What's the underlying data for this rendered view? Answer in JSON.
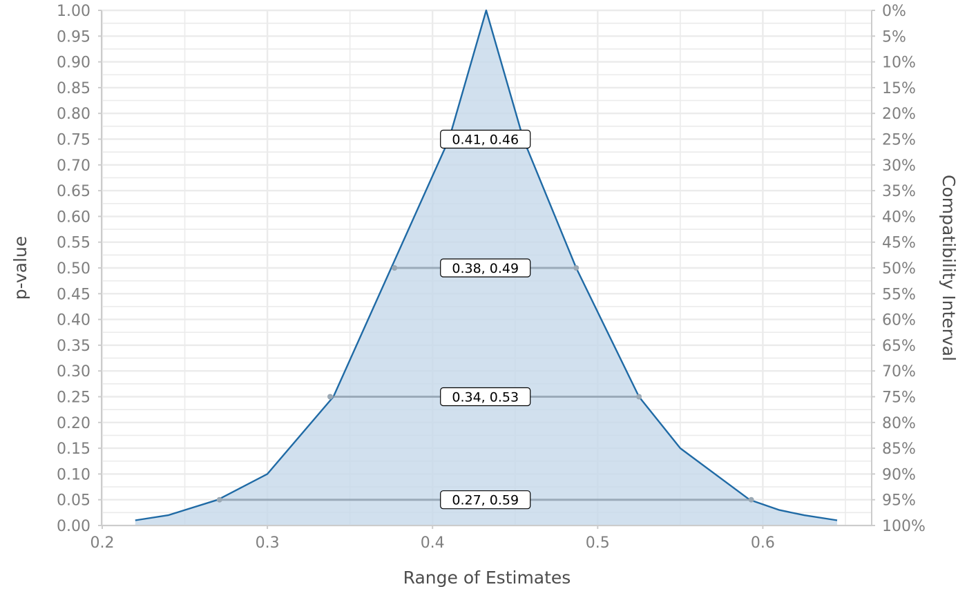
{
  "chart_data": {
    "type": "area",
    "title": "",
    "xlabel": "Range of Estimates",
    "ylabel": "p-value",
    "y2label": "Compatibility Interval",
    "xlim": [
      0.2,
      0.66
    ],
    "ylim": [
      0,
      1
    ],
    "x_ticks": [
      "0.2",
      "0.3",
      "0.4",
      "0.5",
      "0.6"
    ],
    "y_ticks": [
      "0.00",
      "0.05",
      "0.10",
      "0.15",
      "0.20",
      "0.25",
      "0.30",
      "0.35",
      "0.40",
      "0.45",
      "0.50",
      "0.55",
      "0.60",
      "0.65",
      "0.70",
      "0.75",
      "0.80",
      "0.85",
      "0.90",
      "0.95",
      "1.00"
    ],
    "y2_ticks": [
      "100%",
      "95%",
      "90%",
      "85%",
      "80%",
      "75%",
      "70%",
      "65%",
      "60%",
      "55%",
      "50%",
      "45%",
      "40%",
      "35%",
      "30%",
      "25%",
      "20%",
      "15%",
      "10%",
      "5%",
      "0%"
    ],
    "grid": true,
    "series": [
      {
        "color": "#1f6aa5",
        "fill": "#c5d8ea",
        "x": [
          0.22,
          0.24,
          0.25,
          0.27,
          0.3,
          0.34,
          0.375,
          0.41,
          0.4325,
          0.455,
          0.487,
          0.525,
          0.55,
          0.592,
          0.61,
          0.625,
          0.645
        ],
        "y": [
          0.01,
          0.02,
          0.03,
          0.05,
          0.1,
          0.25,
          0.5,
          0.75,
          1.0,
          0.75,
          0.5,
          0.25,
          0.15,
          0.05,
          0.03,
          0.02,
          0.01
        ]
      }
    ],
    "intervals": [
      {
        "p": 0.75,
        "lower": 0.41,
        "upper": 0.46,
        "label": "0.41, 0.46",
        "show_line": false
      },
      {
        "p": 0.5,
        "lower": 0.377,
        "upper": 0.487,
        "label": "0.38, 0.49",
        "show_line": true
      },
      {
        "p": 0.25,
        "lower": 0.338,
        "upper": 0.525,
        "label": "0.34, 0.53",
        "show_line": true
      },
      {
        "p": 0.05,
        "lower": 0.271,
        "upper": 0.593,
        "label": "0.27, 0.59",
        "show_line": true
      }
    ],
    "estimate": 0.432
  }
}
